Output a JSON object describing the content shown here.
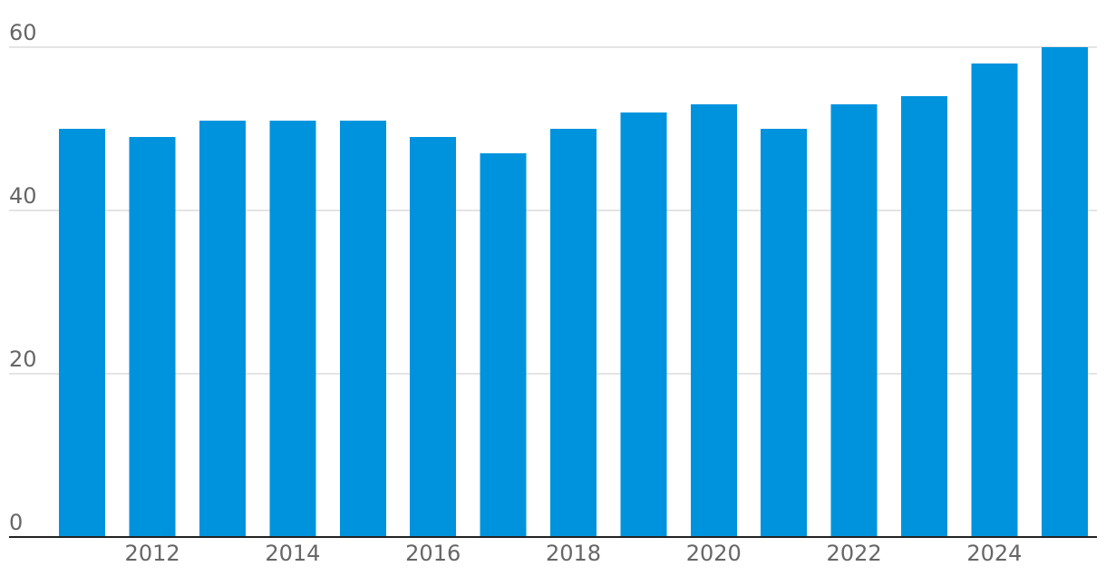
{
  "chart_data": {
    "type": "bar",
    "title": "",
    "xlabel": "",
    "ylabel": "",
    "categories": [
      "2011",
      "2012",
      "2013",
      "2014",
      "2015",
      "2016",
      "2017",
      "2018",
      "2019",
      "2020",
      "2021",
      "2022",
      "2023",
      "2024",
      "2025"
    ],
    "values": [
      50,
      49,
      51,
      51,
      51,
      49,
      47,
      50,
      52,
      53,
      50,
      53,
      54,
      58,
      60
    ],
    "ylim": [
      0,
      60
    ],
    "y_ticks": [
      {
        "value": 0,
        "label": "0"
      },
      {
        "value": 20,
        "label": "20"
      },
      {
        "value": 40,
        "label": "40"
      },
      {
        "value": 60,
        "label": "60"
      }
    ],
    "x_tick_labels": [
      {
        "category": "2012",
        "label": "2012"
      },
      {
        "category": "2014",
        "label": "2014"
      },
      {
        "category": "2016",
        "label": "2016"
      },
      {
        "category": "2018",
        "label": "2018"
      },
      {
        "category": "2020",
        "label": "2020"
      },
      {
        "category": "2022",
        "label": "2022"
      },
      {
        "category": "2024",
        "label": "2024"
      }
    ],
    "grid": true,
    "legend": "none",
    "colors": {
      "bar": "#0093dd",
      "grid": "#c8c8c8",
      "axis": "#222222",
      "tick_text": "#666666"
    }
  }
}
